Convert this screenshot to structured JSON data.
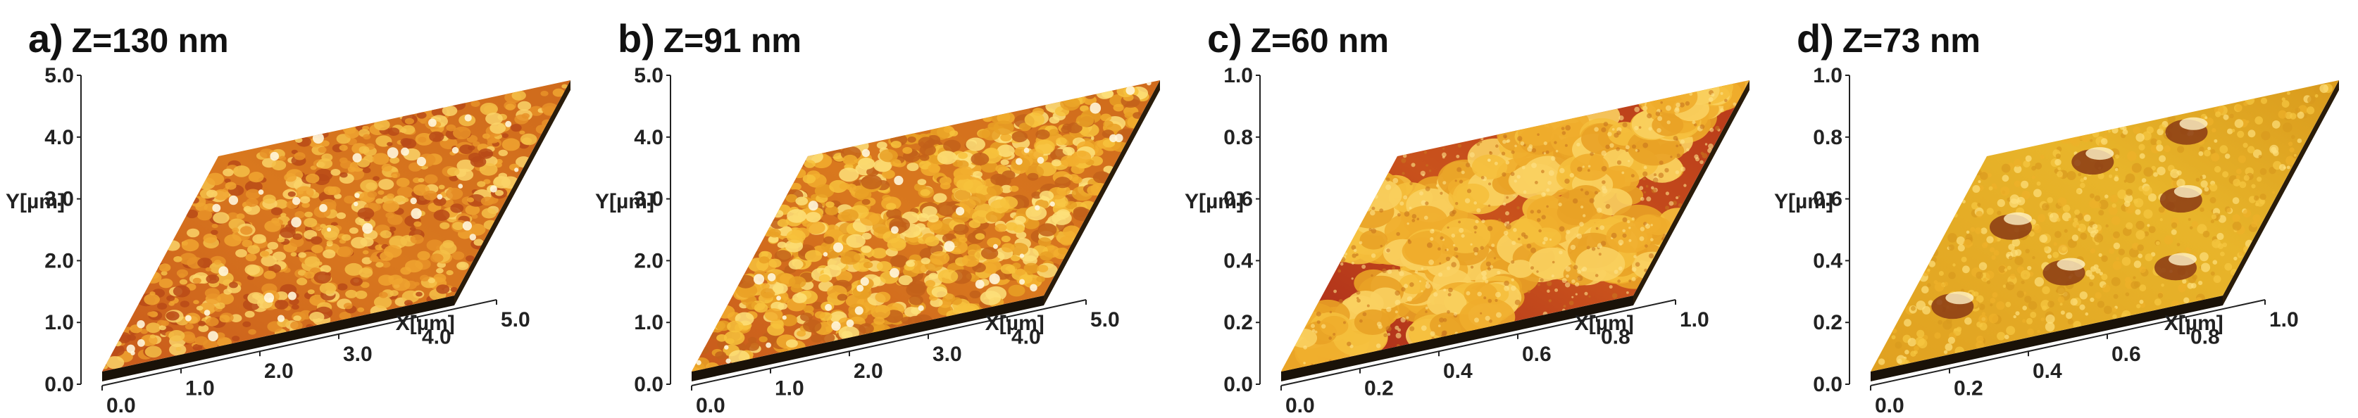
{
  "panels": [
    {
      "letter": "a)",
      "z_label": "Z=130 nm",
      "y_axis_label": "Y[µm]",
      "x_axis_label": "X[µm]",
      "y_ticks": [
        "0.0",
        "1.0",
        "2.0",
        "3.0",
        "4.0",
        "5.0"
      ],
      "x_ticks": [
        "0.0",
        "1.0",
        "2.0",
        "3.0",
        "4.0",
        "5.0"
      ],
      "texture": "fine-grain"
    },
    {
      "letter": "b)",
      "z_label": "Z=91 nm",
      "y_axis_label": "Y[µm]",
      "x_axis_label": "X[µm]",
      "y_ticks": [
        "0.0",
        "1.0",
        "2.0",
        "3.0",
        "4.0",
        "5.0"
      ],
      "x_ticks": [
        "0.0",
        "1.0",
        "2.0",
        "3.0",
        "4.0",
        "5.0"
      ],
      "texture": "dense-grain"
    },
    {
      "letter": "c)",
      "z_label": "Z=60 nm",
      "y_axis_label": "Y[µm]",
      "x_axis_label": "X[µm]",
      "y_ticks": [
        "0.0",
        "0.2",
        "0.4",
        "0.6",
        "0.8",
        "1.0"
      ],
      "x_ticks": [
        "0.0",
        "0.2",
        "0.4",
        "0.6",
        "0.8",
        "1.0"
      ],
      "texture": "islands"
    },
    {
      "letter": "d)",
      "z_label": "Z=73 nm",
      "y_axis_label": "Y[µm]",
      "x_axis_label": "X[µm]",
      "y_ticks": [
        "0.0",
        "0.2",
        "0.4",
        "0.6",
        "0.8",
        "1.0"
      ],
      "x_ticks": [
        "0.0",
        "0.2",
        "0.4",
        "0.6",
        "0.8",
        "1.0"
      ],
      "texture": "holes"
    }
  ]
}
